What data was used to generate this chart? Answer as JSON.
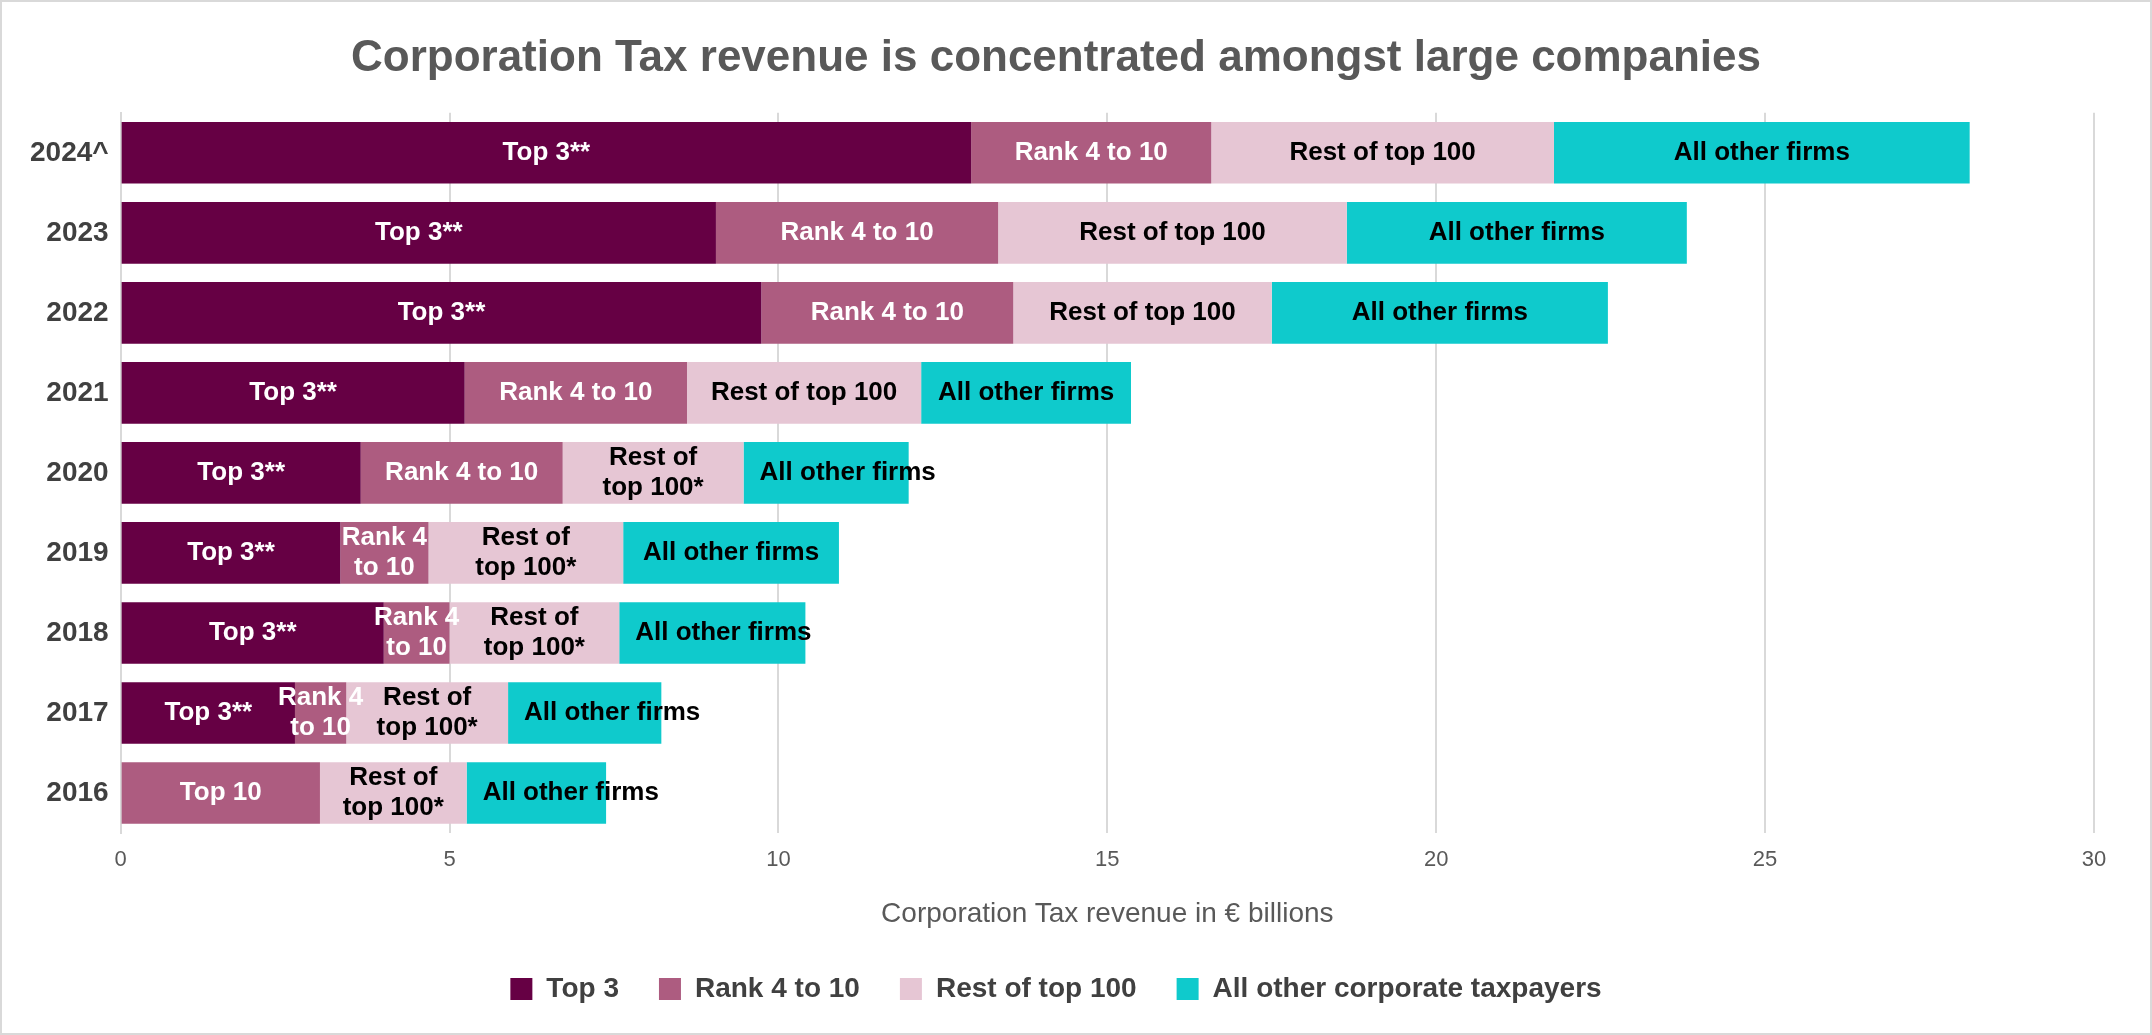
{
  "chart_data": {
    "type": "bar",
    "orientation": "horizontal",
    "stacked": true,
    "title": "Corporation Tax revenue is concentrated amongst large companies",
    "xlabel": "Corporation Tax revenue in € billions",
    "categories": [
      "2024^",
      "2023",
      "2022",
      "2021",
      "2020",
      "2019",
      "2018",
      "2017",
      "2016"
    ],
    "xlim": [
      0,
      30
    ],
    "xticks": [
      0,
      5,
      10,
      15,
      20,
      25,
      30
    ],
    "grid": "x",
    "legend": "bottom",
    "series": [
      {
        "name": "Top 3",
        "color": "#660044",
        "values": [
          12.93,
          9.05,
          9.74,
          5.23,
          3.65,
          3.34,
          4.0,
          2.65,
          null
        ],
        "value_labels": [
          "Top 3**",
          "Top 3**",
          "Top 3**",
          "Top 3**",
          "Top 3**",
          "Top 3**",
          "Top 3**",
          "Top 3**",
          null
        ]
      },
      {
        "name": "Rank 4 to 10",
        "color": "#ad5c80",
        "values": [
          3.65,
          4.29,
          3.83,
          3.38,
          3.07,
          1.34,
          1.0,
          0.78,
          3.03
        ],
        "value_labels": [
          "Rank 4 to 10",
          "Rank 4 to 10",
          "Rank 4 to 10",
          "Rank 4 to 10",
          "Rank 4 to 10",
          "Rank 4 to 10",
          "Rank 4 to 10",
          "Rank 4 to 10",
          "Top 10"
        ]
      },
      {
        "name": "Rest of top 100",
        "color": "#e6c6d4",
        "values": [
          5.21,
          5.3,
          3.93,
          3.56,
          2.75,
          2.96,
          2.58,
          2.46,
          2.23
        ],
        "value_labels": [
          "Rest of top 100",
          "Rest of top 100",
          "Rest of top 100",
          "Rest of top 100",
          "Rest of top 100*",
          "Rest of top 100*",
          "Rest of top 100*",
          "Rest of top 100*",
          "Rest of top 100*"
        ]
      },
      {
        "name": "All other corporate taxpayers",
        "color": "#0fcacc",
        "values": [
          6.32,
          5.17,
          5.11,
          3.19,
          2.51,
          3.28,
          2.83,
          2.33,
          2.12
        ],
        "value_labels": [
          "All other firms",
          "All other firms",
          "All other firms",
          "All other firms",
          "All other firms",
          "All other firms",
          "All other firms",
          "All other firms",
          "All other firms"
        ]
      }
    ]
  }
}
